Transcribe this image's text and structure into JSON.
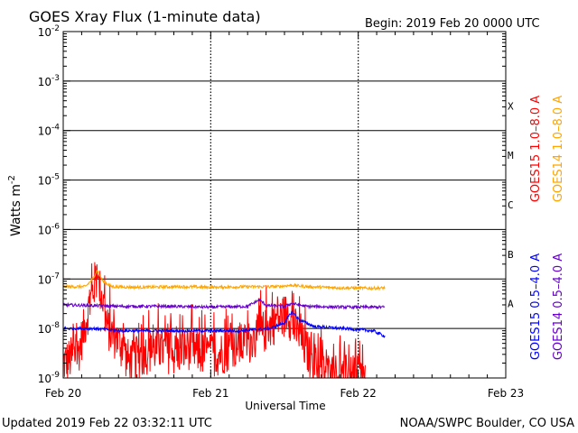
{
  "chart_data": {
    "type": "line",
    "title": "GOES Xray Flux (1-minute data)",
    "begin_label": "Begin:  2019 Feb 20 0000 UTC",
    "ylabel": "Watts m",
    "ylabel_sup": "-2",
    "xlabel": "Universal Time",
    "yscale": "log",
    "ylim": [
      1e-09,
      0.01
    ],
    "xlim": [
      0,
      3
    ],
    "x_unit": "days since 2019 Feb 20 0000 UTC",
    "x_ticks": [
      {
        "value": 0,
        "label": "Feb 20"
      },
      {
        "value": 1,
        "label": "Feb 21"
      },
      {
        "value": 2,
        "label": "Feb 22"
      },
      {
        "value": 3,
        "label": "Feb 23"
      }
    ],
    "y_ticks": [
      {
        "exp": -2,
        "base": "10",
        "sup": "-2"
      },
      {
        "exp": -3,
        "base": "10",
        "sup": "-3"
      },
      {
        "exp": -4,
        "base": "10",
        "sup": "-4"
      },
      {
        "exp": -5,
        "base": "10",
        "sup": "-5"
      },
      {
        "exp": -6,
        "base": "10",
        "sup": "-6"
      },
      {
        "exp": -7,
        "base": "10",
        "sup": "-7"
      },
      {
        "exp": -8,
        "base": "10",
        "sup": "-8"
      },
      {
        "exp": -9,
        "base": "10",
        "sup": "-9"
      }
    ],
    "flare_classes": [
      {
        "label": "X",
        "exp": -4
      },
      {
        "label": "M",
        "exp": -5
      },
      {
        "label": "C",
        "exp": -6
      },
      {
        "label": "B",
        "exp": -7
      },
      {
        "label": "A",
        "exp": -8
      }
    ],
    "series": [
      {
        "name": "GOES15 1.0–8.0 A",
        "color": "#ff0000",
        "style": "spiky",
        "points": [
          [
            0.0,
            2e-09
          ],
          [
            0.1,
            3e-09
          ],
          [
            0.18,
            3e-08
          ],
          [
            0.22,
            1e-07
          ],
          [
            0.26,
            5e-08
          ],
          [
            0.3,
            1e-08
          ],
          [
            0.38,
            5e-09
          ],
          [
            0.45,
            2e-09
          ],
          [
            0.55,
            3e-09
          ],
          [
            0.65,
            4e-09
          ],
          [
            0.75,
            3e-09
          ],
          [
            0.85,
            4e-09
          ],
          [
            0.95,
            3e-09
          ],
          [
            1.05,
            3e-09
          ],
          [
            1.15,
            4e-09
          ],
          [
            1.25,
            5e-09
          ],
          [
            1.35,
            8e-09
          ],
          [
            1.45,
            1.5e-08
          ],
          [
            1.52,
            2e-08
          ],
          [
            1.57,
            1e-08
          ],
          [
            1.62,
            5e-09
          ],
          [
            1.7,
            2e-09
          ],
          [
            1.8,
            1.2e-09
          ],
          [
            1.9,
            1.1e-09
          ],
          [
            2.0,
            1e-09
          ],
          [
            2.05,
            1e-09
          ]
        ]
      },
      {
        "name": "GOES14 1.0–8.0 A",
        "color": "#ffa500",
        "style": "line",
        "points": [
          [
            0.0,
            7e-08
          ],
          [
            0.15,
            7e-08
          ],
          [
            0.2,
            1e-07
          ],
          [
            0.23,
            1.5e-07
          ],
          [
            0.27,
            9e-08
          ],
          [
            0.33,
            7e-08
          ],
          [
            0.5,
            6.8e-08
          ],
          [
            0.8,
            7e-08
          ],
          [
            1.0,
            6.8e-08
          ],
          [
            1.3,
            7e-08
          ],
          [
            1.45,
            7e-08
          ],
          [
            1.55,
            7.5e-08
          ],
          [
            1.65,
            7e-08
          ],
          [
            1.9,
            6.6e-08
          ],
          [
            2.1,
            6.5e-08
          ],
          [
            2.18,
            6.6e-08
          ]
        ]
      },
      {
        "name": "GOES14 0.5–4.0 A",
        "color": "#6600cc",
        "style": "line",
        "points": [
          [
            0.0,
            3e-08
          ],
          [
            0.2,
            2.9e-08
          ],
          [
            0.4,
            2.8e-08
          ],
          [
            0.7,
            2.8e-08
          ],
          [
            1.0,
            2.7e-08
          ],
          [
            1.25,
            2.8e-08
          ],
          [
            1.33,
            3.8e-08
          ],
          [
            1.38,
            2.9e-08
          ],
          [
            1.5,
            2.8e-08
          ],
          [
            1.55,
            3.2e-08
          ],
          [
            1.65,
            2.8e-08
          ],
          [
            1.9,
            2.7e-08
          ],
          [
            2.1,
            2.7e-08
          ],
          [
            2.18,
            2.7e-08
          ]
        ]
      },
      {
        "name": "GOES15 0.5–4.0 A",
        "color": "#0000ff",
        "style": "line",
        "points": [
          [
            0.0,
            1e-08
          ],
          [
            0.2,
            1e-08
          ],
          [
            0.4,
            9e-09
          ],
          [
            0.7,
            9e-09
          ],
          [
            1.0,
            9e-09
          ],
          [
            1.2,
            9e-09
          ],
          [
            1.4,
            1e-08
          ],
          [
            1.5,
            1.3e-08
          ],
          [
            1.55,
            2.2e-08
          ],
          [
            1.6,
            1.5e-08
          ],
          [
            1.7,
            1.1e-08
          ],
          [
            1.9,
            1e-08
          ],
          [
            2.1,
            9e-09
          ],
          [
            2.18,
            7e-09
          ]
        ]
      }
    ],
    "legend_right": [
      {
        "label": "GOES15 1.0–8.0 A",
        "color": "#ff0000"
      },
      {
        "label": "GOES14 1.0–8.0 A",
        "color": "#ffa500"
      },
      {
        "label": "GOES15 0.5–4.0 A",
        "color": "#0000ff"
      },
      {
        "label": "GOES14 0.5–4.0 A",
        "color": "#6600cc"
      }
    ],
    "grid": true
  },
  "footer": {
    "updated": "Updated 2019 Feb 22 03:32:11 UTC",
    "credit": "NOAA/SWPC Boulder, CO USA"
  }
}
